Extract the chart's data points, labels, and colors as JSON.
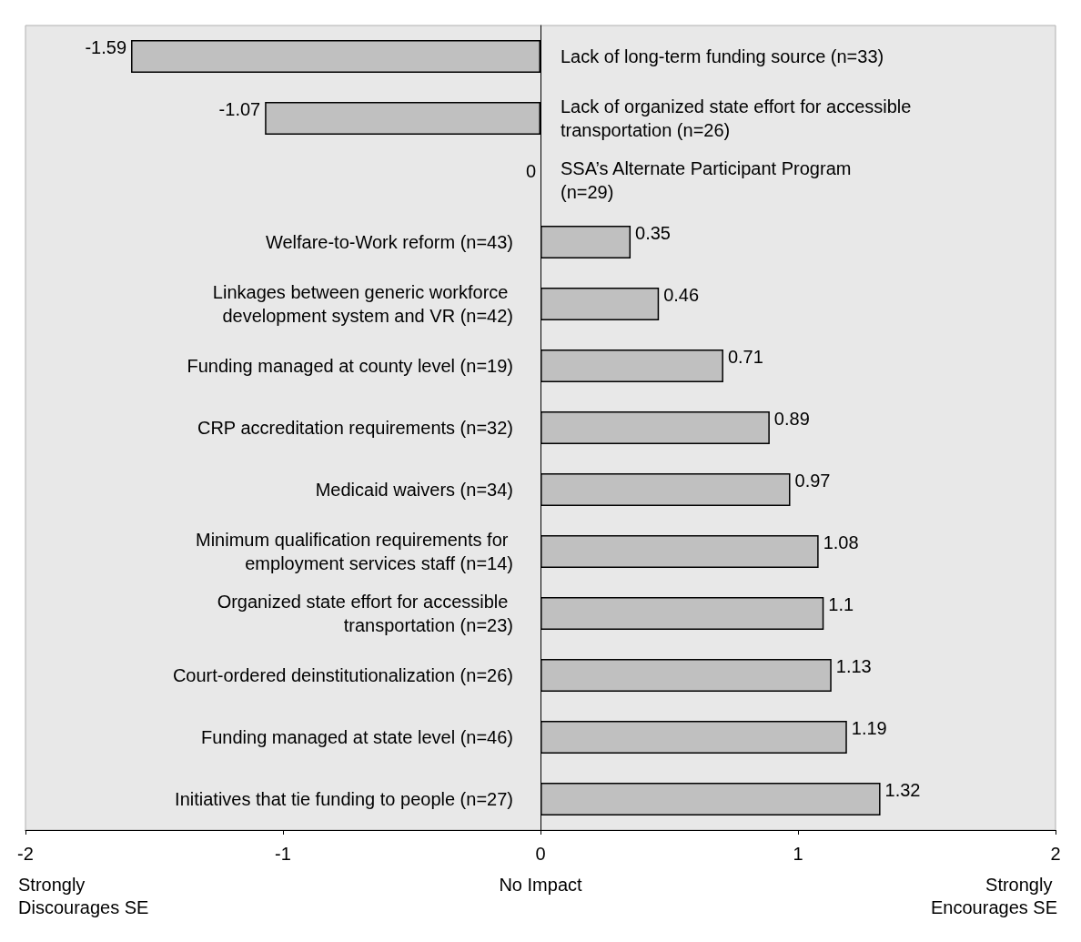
{
  "chart_data": {
    "type": "bar",
    "orientation": "horizontal",
    "categories": [
      "Lack of long-term funding source (n=33)",
      "Lack of organized state effort for accessible transportation (n=26)",
      "SSA’s Alternate Participant Program (n=29)",
      "Welfare-to-Work reform (n=43)",
      "Linkages between generic workforce development system and VR (n=42)",
      "Funding managed at county level (n=19)",
      "CRP accreditation requirements (n=32)",
      "Medicaid waivers (n=34)",
      "Minimum qualification requirements for employment services staff (n=14)",
      "Organized state effort for accessible transportation (n=23)",
      "Court-ordered deinstitutionalization (n=26)",
      "Funding managed at state level (n=46)",
      "Initiatives that tie funding to people (n=27)"
    ],
    "values": [
      -1.59,
      -1.07,
      0,
      0.35,
      0.46,
      0.71,
      0.89,
      0.97,
      1.08,
      1.1,
      1.13,
      1.19,
      1.32
    ],
    "color": "#c0c0c0",
    "data_labels": true,
    "xlim": [
      -2,
      2
    ],
    "xticks": [
      -2,
      -1,
      0,
      1,
      2
    ],
    "grid": false,
    "annotations": [
      "Strongly Discourages SE",
      "No Impact",
      "Strongly Encourages SE"
    ]
  }
}
